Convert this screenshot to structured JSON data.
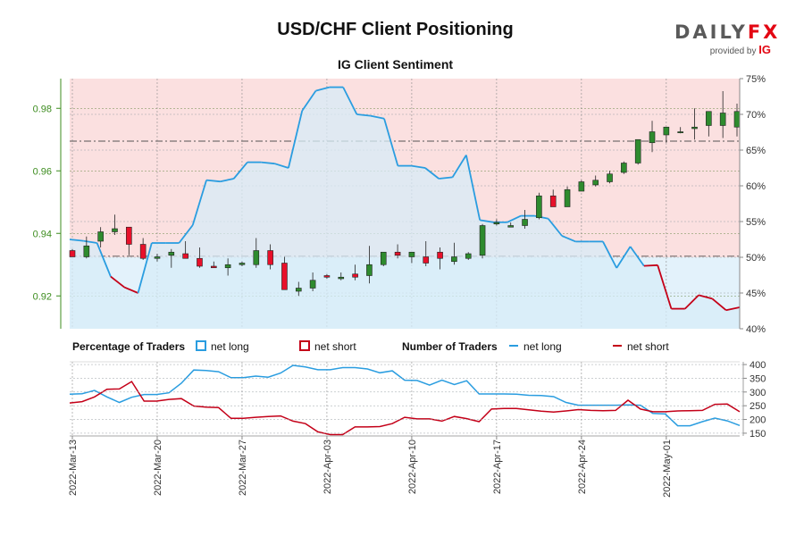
{
  "title": "USD/CHF Client Positioning",
  "subtitle": "IG Client Sentiment",
  "logo": {
    "word_main": "DAILY",
    "word_accent": "FX",
    "provided_by": "provided by",
    "brand": "IG"
  },
  "colors": {
    "long": "#2a9de0",
    "short": "#c40018",
    "candle_up": "#2e8b2e",
    "candle_down": "#e8102a",
    "short_zone": "#fbe0e0",
    "long_zone": "#e3f2fb",
    "price_axis": "#3c8c1e",
    "axis_text": "#333333"
  },
  "chart_data": {
    "type": "candlestick",
    "dates": [
      "2022-03-13",
      "2022-03-14",
      "2022-03-15",
      "2022-03-16",
      "2022-03-17",
      "2022-03-18",
      "2022-03-20",
      "2022-03-21",
      "2022-03-22",
      "2022-03-23",
      "2022-03-24",
      "2022-03-25",
      "2022-03-27",
      "2022-03-28",
      "2022-03-29",
      "2022-03-30",
      "2022-03-31",
      "2022-04-01",
      "2022-04-03",
      "2022-04-04",
      "2022-04-05",
      "2022-04-06",
      "2022-04-07",
      "2022-04-08",
      "2022-04-10",
      "2022-04-11",
      "2022-04-12",
      "2022-04-13",
      "2022-04-14",
      "2022-04-15",
      "2022-04-17",
      "2022-04-18",
      "2022-04-19",
      "2022-04-20",
      "2022-04-21",
      "2022-04-22",
      "2022-04-24",
      "2022-04-25",
      "2022-04-26",
      "2022-04-27",
      "2022-04-28",
      "2022-04-29",
      "2022-05-01",
      "2022-05-02",
      "2022-05-03",
      "2022-05-04",
      "2022-05-05",
      "2022-05-06"
    ],
    "x_tick_labels": [
      "2022-Mar-13",
      "2022-Mar-20",
      "2022-Mar-27",
      "2022-Apr-03",
      "2022-Apr-10",
      "2022-Apr-17",
      "2022-Apr-24",
      "2022-May-01"
    ],
    "price": {
      "open": [
        0.9345,
        0.9325,
        0.9375,
        0.9405,
        0.942,
        0.9365,
        0.932,
        0.933,
        0.9335,
        0.932,
        0.9295,
        0.929,
        0.93,
        0.93,
        0.9345,
        0.9305,
        0.9215,
        0.9225,
        0.9265,
        0.9255,
        0.927,
        0.9265,
        0.93,
        0.934,
        0.9325,
        0.9325,
        0.934,
        0.931,
        0.932,
        0.933,
        0.943,
        0.942,
        0.9425,
        0.945,
        0.952,
        0.9485,
        0.9535,
        0.9555,
        0.9565,
        0.9595,
        0.9625,
        0.969,
        0.9715,
        0.9725,
        0.9735,
        0.9745,
        0.9745,
        0.974
      ],
      "high": [
        0.935,
        0.939,
        0.942,
        0.946,
        0.942,
        0.9385,
        0.9335,
        0.935,
        0.9375,
        0.9355,
        0.931,
        0.932,
        0.931,
        0.9385,
        0.9365,
        0.9325,
        0.9245,
        0.9275,
        0.927,
        0.9275,
        0.93,
        0.936,
        0.934,
        0.9365,
        0.934,
        0.9375,
        0.9355,
        0.937,
        0.934,
        0.943,
        0.9445,
        0.9435,
        0.9475,
        0.953,
        0.954,
        0.955,
        0.957,
        0.9585,
        0.96,
        0.963,
        0.97,
        0.976,
        0.9735,
        0.974,
        0.98,
        0.979,
        0.9855,
        0.9815
      ],
      "low": [
        0.9325,
        0.932,
        0.9355,
        0.9395,
        0.933,
        0.9315,
        0.931,
        0.929,
        0.932,
        0.929,
        0.929,
        0.9265,
        0.9295,
        0.929,
        0.9285,
        0.9225,
        0.92,
        0.9215,
        0.9255,
        0.925,
        0.925,
        0.924,
        0.9295,
        0.932,
        0.9305,
        0.9295,
        0.9285,
        0.93,
        0.9315,
        0.932,
        0.9425,
        0.942,
        0.9415,
        0.9445,
        0.9485,
        0.9485,
        0.9535,
        0.955,
        0.956,
        0.959,
        0.962,
        0.966,
        0.969,
        0.972,
        0.97,
        0.971,
        0.9705,
        0.971
      ],
      "close": [
        0.9325,
        0.936,
        0.9405,
        0.9415,
        0.9365,
        0.932,
        0.9325,
        0.934,
        0.932,
        0.9295,
        0.929,
        0.93,
        0.9305,
        0.9345,
        0.93,
        0.922,
        0.9225,
        0.925,
        0.926,
        0.926,
        0.926,
        0.93,
        0.934,
        0.933,
        0.934,
        0.9305,
        0.932,
        0.9325,
        0.9335,
        0.9425,
        0.9435,
        0.9425,
        0.9445,
        0.952,
        0.9485,
        0.954,
        0.9565,
        0.957,
        0.959,
        0.9625,
        0.97,
        0.9725,
        0.974,
        0.9725,
        0.974,
        0.979,
        0.9785,
        0.979
      ],
      "ylim": [
        0.9095,
        0.9895
      ],
      "yticks": [
        0.92,
        0.94,
        0.96,
        0.98
      ],
      "ref_lines": [
        0.9695,
        0.9327
      ]
    },
    "sentiment_pct_long": {
      "ylim": [
        40,
        75
      ],
      "yticks": [
        "40%",
        "45%",
        "50%",
        "55%",
        "60%",
        "65%",
        "70%",
        "75%"
      ],
      "values": [
        52.5,
        52.3,
        52.0,
        47.3,
        45.8,
        45.0,
        52.0,
        52.0,
        52.0,
        54.5,
        60.8,
        60.6,
        61.0,
        63.3,
        63.3,
        63.1,
        62.5,
        70.5,
        73.3,
        73.8,
        73.8,
        70.0,
        69.8,
        69.4,
        62.8,
        62.8,
        62.5,
        61.0,
        61.2,
        64.3,
        55.2,
        54.9,
        54.9,
        55.8,
        55.8,
        55.4,
        53.0,
        52.2,
        52.2,
        52.2,
        48.5,
        51.5,
        48.8,
        48.9,
        42.8,
        42.8,
        44.7,
        44.2,
        42.6,
        43.0
      ]
    },
    "traders": {
      "ylim": [
        140,
        410
      ],
      "yticks": [
        150,
        200,
        250,
        300,
        350,
        400
      ],
      "net_long": [
        292,
        294,
        306,
        282,
        262,
        281,
        291,
        291,
        297,
        332,
        380,
        378,
        374,
        352,
        352,
        358,
        354,
        369,
        397,
        391,
        381,
        381,
        389,
        389,
        384,
        370,
        377,
        343,
        342,
        325,
        343,
        327,
        341,
        293,
        293,
        293,
        292,
        288,
        287,
        283,
        262,
        252,
        252,
        252,
        252,
        253,
        252,
        222,
        220,
        177,
        177,
        192,
        205,
        195,
        178
      ],
      "net_short": [
        260,
        265,
        282,
        310,
        311,
        338,
        267,
        267,
        273,
        276,
        249,
        245,
        243,
        204,
        204,
        208,
        211,
        213,
        194,
        185,
        155,
        145,
        145,
        173,
        173,
        174,
        185,
        208,
        202,
        202,
        194,
        211,
        203,
        192,
        238,
        240,
        240,
        235,
        230,
        227,
        231,
        236,
        233,
        232,
        233,
        270,
        238,
        228,
        228,
        231,
        232,
        233,
        255,
        256,
        228
      ]
    }
  },
  "legend": {
    "pct_title": "Percentage of Traders",
    "count_title": "Number of Traders",
    "long_label": "net long",
    "short_label": "net short"
  }
}
